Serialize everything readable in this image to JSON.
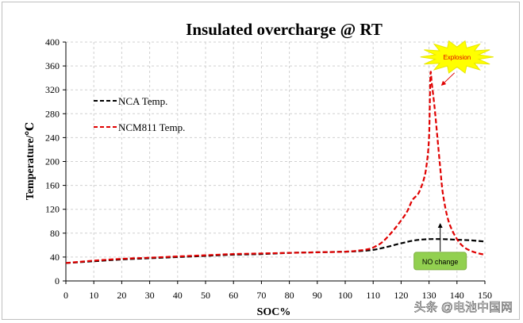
{
  "chart_data": {
    "type": "line",
    "title": "Insulated overcharge  @ RT",
    "xlabel": "SOC%",
    "ylabel": "Temperature/℃",
    "xlim": [
      0,
      150
    ],
    "ylim": [
      0,
      400
    ],
    "x_ticks": [
      0,
      10,
      20,
      30,
      40,
      50,
      60,
      70,
      80,
      90,
      100,
      110,
      120,
      130,
      140,
      150
    ],
    "y_ticks": [
      0,
      40,
      80,
      120,
      160,
      200,
      240,
      280,
      320,
      360,
      400
    ],
    "grid": true,
    "legend_position": "top-left",
    "series": [
      {
        "name": "NCA Temp.",
        "color": "#000000",
        "dash": "dashed",
        "x": [
          0,
          10,
          20,
          30,
          40,
          50,
          60,
          70,
          80,
          90,
          100,
          105,
          110,
          115,
          120,
          125,
          130,
          135,
          140,
          145,
          150
        ],
        "y": [
          30,
          33,
          36,
          38,
          40,
          42,
          44,
          45,
          47,
          48,
          49,
          50,
          52,
          57,
          63,
          68,
          70,
          70,
          69,
          68,
          66
        ]
      },
      {
        "name": "NCM811 Temp.",
        "color": "#e00000",
        "dash": "dashed",
        "x": [
          0,
          10,
          20,
          30,
          40,
          50,
          60,
          70,
          80,
          90,
          100,
          105,
          108,
          110,
          113,
          116,
          119,
          122,
          124,
          126,
          127,
          128,
          129,
          130,
          130.5,
          131,
          132,
          133,
          134,
          135,
          137,
          140,
          143,
          147,
          150
        ],
        "y": [
          30,
          34,
          37,
          39,
          41,
          43,
          45,
          46,
          47,
          48,
          49,
          51,
          53,
          56,
          64,
          78,
          95,
          115,
          135,
          145,
          155,
          168,
          190,
          240,
          345,
          330,
          290,
          240,
          190,
          145,
          100,
          70,
          55,
          47,
          44
        ]
      }
    ],
    "annotations": [
      {
        "text": "Explosion",
        "x": 140,
        "y": 375,
        "arrow_to": [
          134,
          320
        ],
        "color": "#e00000",
        "background": "#ffff00"
      },
      {
        "text": "NO change",
        "x": 134,
        "y": 32,
        "arrow_to": [
          134,
          106
        ],
        "color": "#000000",
        "background": "#92d050"
      }
    ]
  },
  "watermark": "头条 @电池中国网"
}
